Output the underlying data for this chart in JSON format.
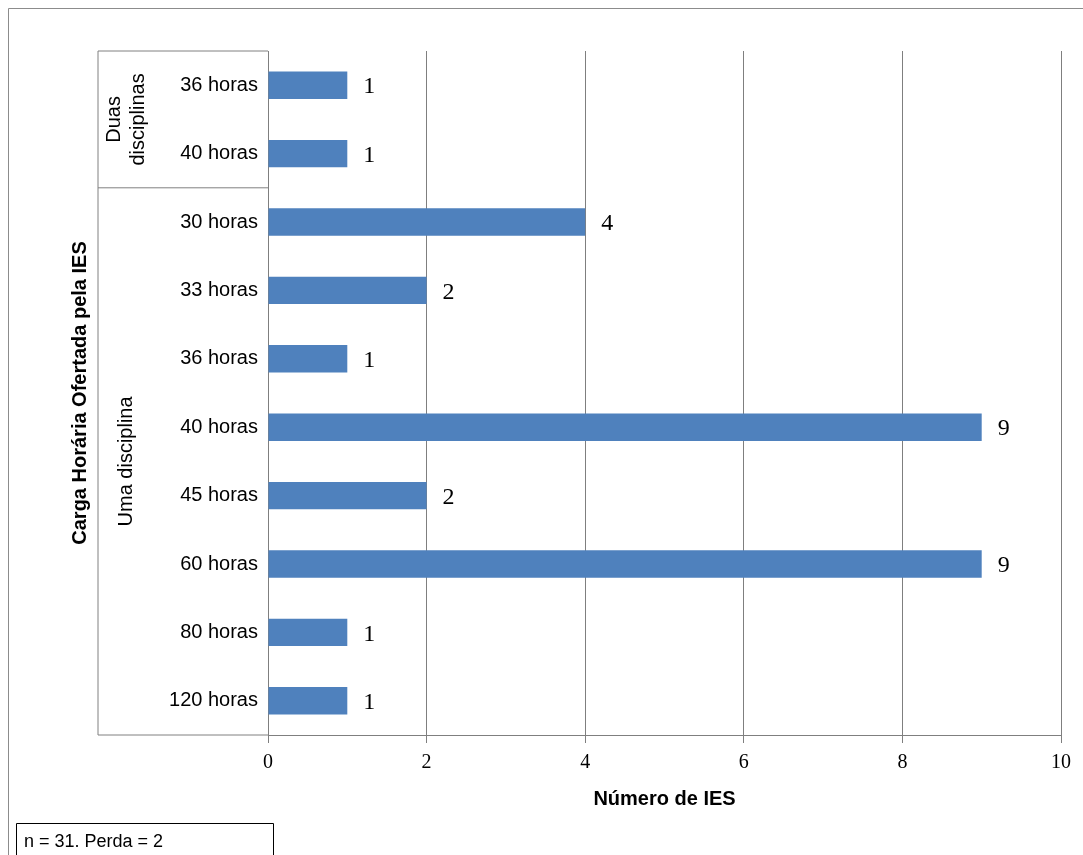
{
  "chart_data": {
    "type": "bar",
    "orientation": "horizontal",
    "ylabel": "Carga Horária Ofertada pela IES",
    "xlabel": "Número de IES",
    "categories": [
      "36 horas",
      "40 horas",
      "30 horas",
      "33 horas",
      "36 horas",
      "40 horas",
      "45 horas",
      "60 horas",
      "80 horas",
      "120 horas"
    ],
    "values": [
      1,
      1,
      4,
      2,
      1,
      9,
      2,
      9,
      1,
      1
    ],
    "color": "#4f81bd",
    "data_labels": true,
    "xlim": [
      0,
      10
    ],
    "xticks": [
      0,
      2,
      4,
      6,
      8,
      10
    ],
    "grid": "x",
    "legend": false,
    "annotations": [
      "Duas disciplinas",
      "Uma disciplina",
      "n = 31. Perda = 2"
    ]
  }
}
